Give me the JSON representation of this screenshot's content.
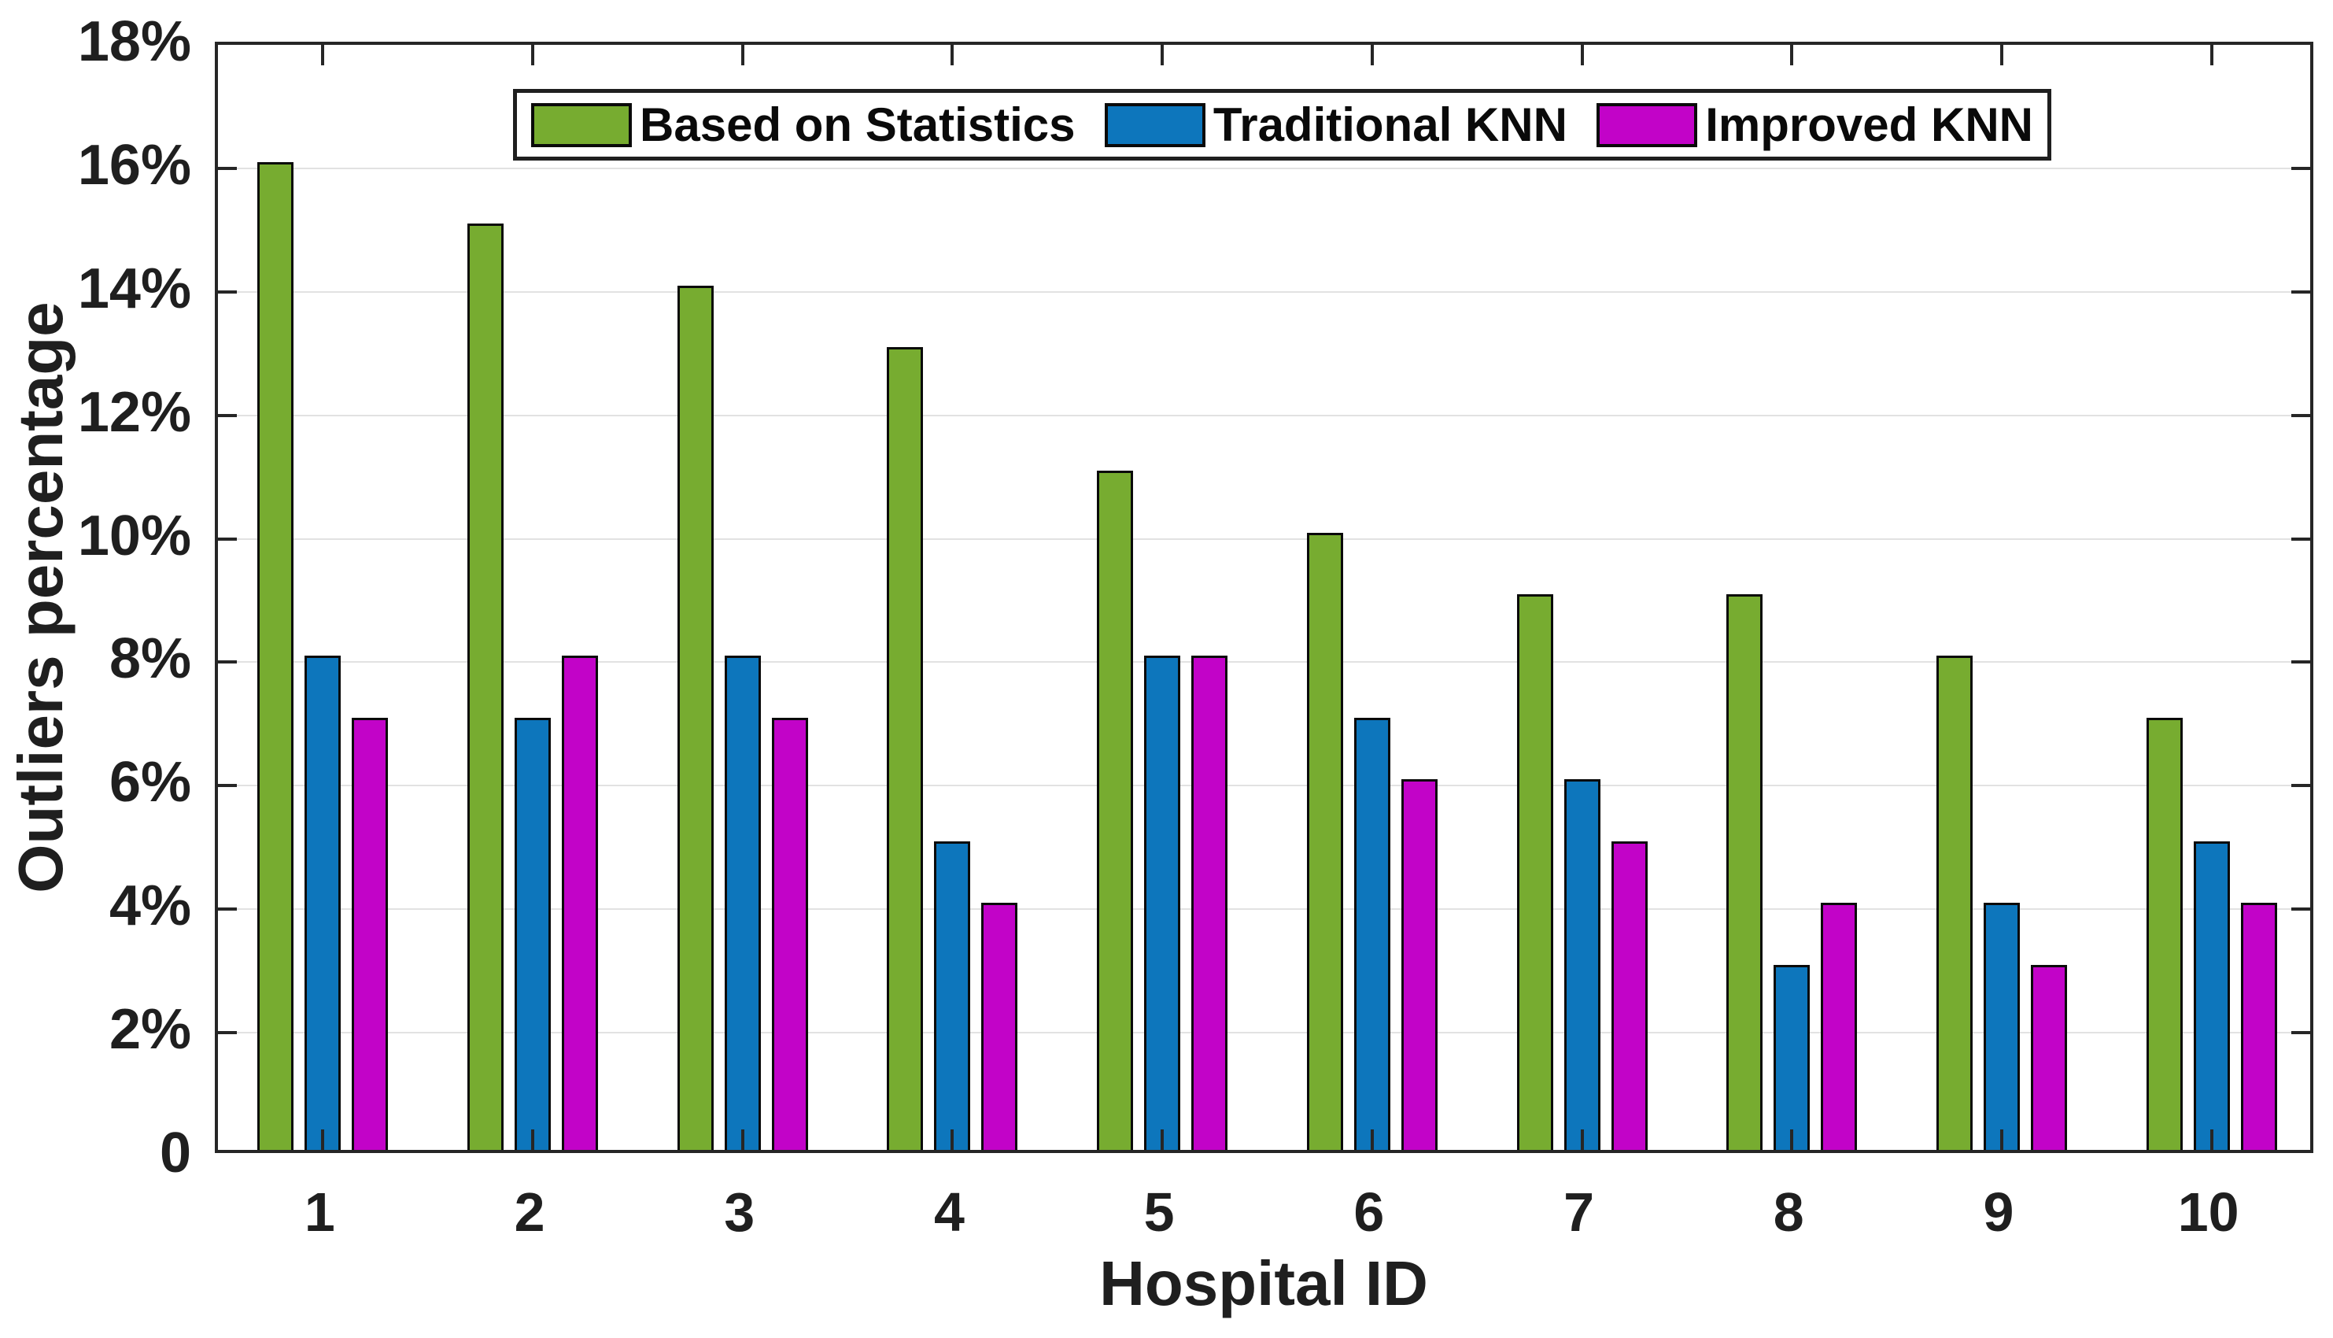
{
  "chart_data": {
    "type": "bar",
    "title": "",
    "xlabel": "Hospital ID",
    "ylabel": "Outliers percentage",
    "categories": [
      "1",
      "2",
      "3",
      "4",
      "5",
      "6",
      "7",
      "8",
      "9",
      "10"
    ],
    "series": [
      {
        "name": "Based on Statistics",
        "color": "#77AC30",
        "values": [
          16,
          15,
          14,
          13,
          11,
          10,
          9,
          9,
          8,
          7
        ]
      },
      {
        "name": "Traditional KNN",
        "color": "#0D76BC",
        "values": [
          8,
          7,
          8,
          5,
          8,
          7,
          6,
          3,
          4,
          5
        ]
      },
      {
        "name": "Improved KNN",
        "color": "#C203C8",
        "values": [
          7,
          8,
          7,
          4,
          8,
          6,
          5,
          4,
          3,
          4
        ]
      }
    ],
    "ylim": [
      0,
      18
    ],
    "ytick_step": 2,
    "ytick_labels": [
      "0",
      "2%",
      "4%",
      "6%",
      "8%",
      "10%",
      "12%",
      "14%",
      "16%",
      "18%"
    ],
    "grid": "horizontal",
    "legend_position": "top-center-inside",
    "colors": {
      "axis": "#262626",
      "grid": "#e2e2e2",
      "background": "#ffffff",
      "bar_edge": "#0a0a0a",
      "text": "#1f1f1f"
    }
  }
}
